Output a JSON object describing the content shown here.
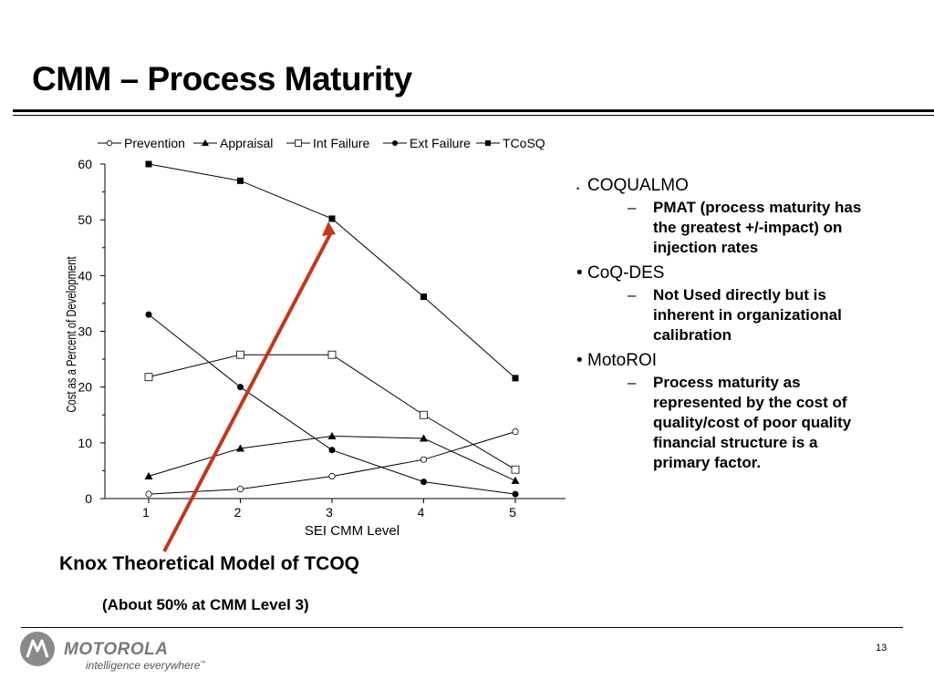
{
  "slide": {
    "title": "CMM – Process Maturity",
    "annotation": "Knox Theoretical Model of TCOQ",
    "annotation_sub": "(About 50% at CMM Level 3)",
    "page_number": "13"
  },
  "bullets": [
    {
      "label": "COQUALMO",
      "sub": "PMAT (process maturity has the greatest +/-impact) on injection rates"
    },
    {
      "label": "CoQ-DES",
      "sub": "Not Used directly but is inherent in organizational calibration"
    },
    {
      "label": "MotoROI",
      "sub": "Process maturity as represented by the cost of quality/cost of poor quality financial structure is a primary factor."
    }
  ],
  "footer": {
    "brand": "MOTOROLA",
    "tagline": "intelligence everywhere",
    "trademark": "™",
    "logo_icon": "motorola-batwing-logo-icon"
  },
  "chart_data": {
    "type": "line",
    "title": "",
    "xlabel": "SEI CMM Level",
    "ylabel": "Cost as a Percent of Development",
    "x": [
      1,
      2,
      3,
      4,
      5
    ],
    "ylim": [
      0,
      60
    ],
    "yticks": [
      0,
      10,
      20,
      30,
      40,
      50,
      60
    ],
    "legend_position": "top",
    "grid": false,
    "series": [
      {
        "name": "Prevention",
        "marker": "open-circle",
        "values": [
          0.8,
          1.7,
          4.0,
          7.0,
          12.0
        ]
      },
      {
        "name": "Appraisal",
        "marker": "filled-triangle",
        "values": [
          4.0,
          9.0,
          11.2,
          10.8,
          3.2
        ]
      },
      {
        "name": "Int Failure",
        "marker": "open-square",
        "values": [
          21.8,
          25.8,
          25.8,
          15.0,
          5.2
        ]
      },
      {
        "name": "Ext Failure",
        "marker": "filled-circle",
        "values": [
          33.0,
          20.0,
          8.7,
          3.0,
          0.8
        ]
      },
      {
        "name": "TCoSQ",
        "marker": "filled-square",
        "values": [
          60.0,
          57.0,
          50.2,
          36.2,
          21.6
        ]
      }
    ],
    "annotation_arrow": {
      "from_label": "Knox Theoretical Model of TCOQ",
      "to_x": 3,
      "to_y": 50.2,
      "color": "#c0391b"
    }
  }
}
